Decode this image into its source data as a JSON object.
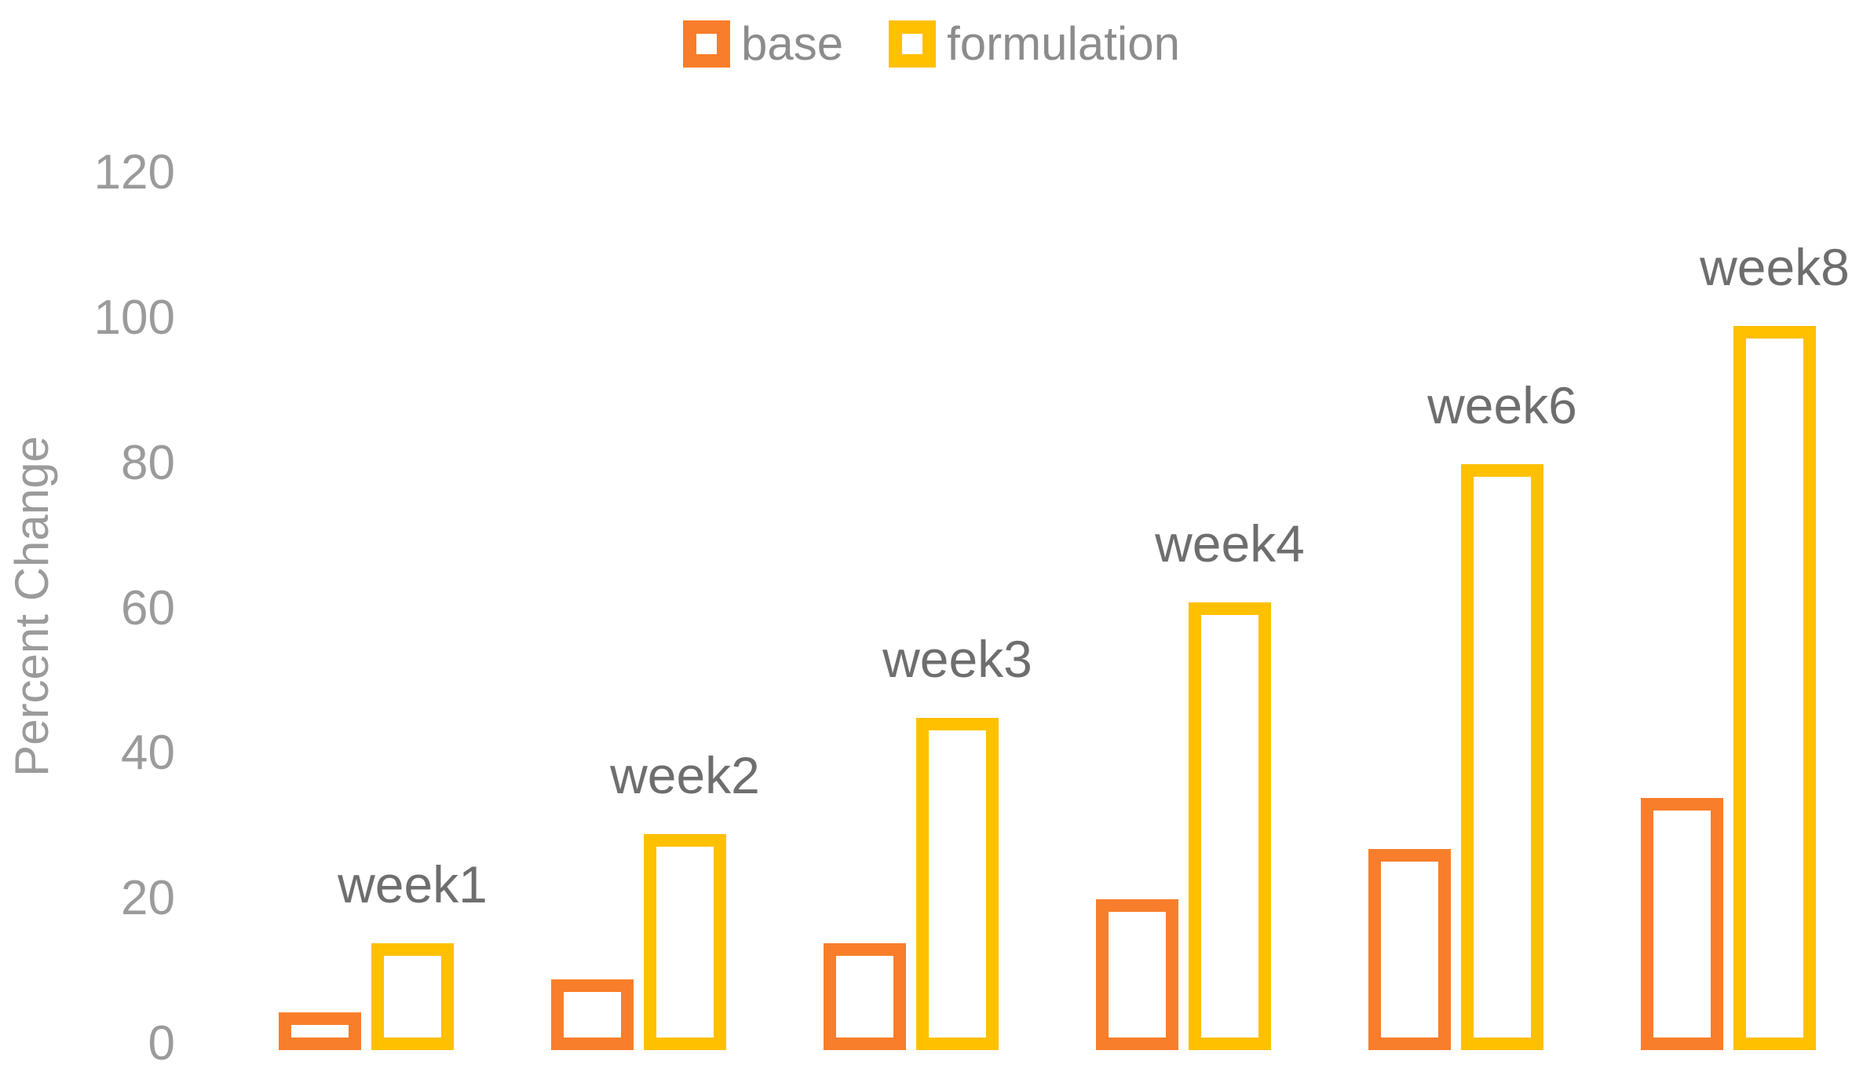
{
  "chart_data": {
    "type": "bar",
    "title": "",
    "categories": [
      "week1",
      "week2",
      "week3",
      "week4",
      "week6",
      "week8"
    ],
    "series": [
      {
        "name": "base",
        "color": "#F87E2B",
        "values": [
          3.5,
          8,
          13,
          19,
          26,
          33
        ]
      },
      {
        "name": "formulation",
        "color": "#FFC000",
        "values": [
          13,
          28,
          44,
          60,
          79,
          98
        ]
      }
    ],
    "xlabel": "",
    "ylabel": "Percent Change",
    "ylim": [
      0,
      120
    ],
    "yticks": [
      0,
      20,
      40,
      60,
      80,
      100,
      120
    ],
    "grid": false,
    "axis_lines": false,
    "legend_position": "top-center",
    "bar_style": "hollow-outline",
    "colors": {
      "base_outline": "#F87E2B",
      "formulation_outline": "#FFC000",
      "tick_text": "#9B9B9B",
      "category_text": "#6E6E6E",
      "legend_text": "#8C8C8C",
      "axis_title_text": "#9B9B9B",
      "background": "#FFFFFF"
    }
  }
}
